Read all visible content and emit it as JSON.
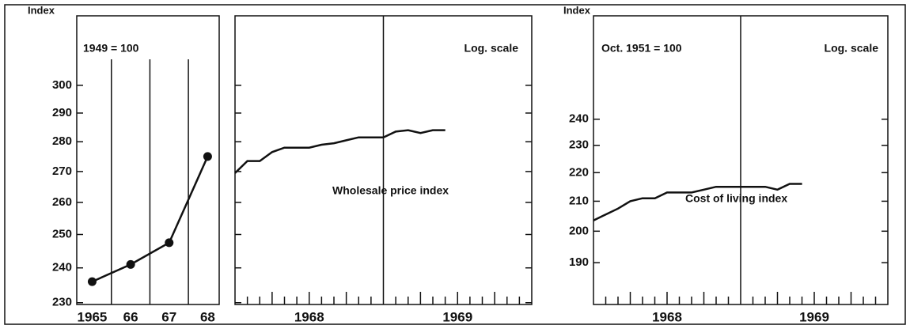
{
  "chart_data": [
    {
      "type": "line",
      "ylabel": "Index",
      "annotations": [
        "1949 = 100"
      ],
      "x": [
        1965,
        1966,
        1967,
        1968
      ],
      "values": [
        236,
        241,
        247.5,
        275
      ],
      "color": "#111111",
      "markers": true,
      "xlim": [
        1964.6,
        1968.3
      ],
      "xticks": [
        {
          "value": 1965,
          "label": "1965"
        },
        {
          "value": 1966,
          "label": "66"
        },
        {
          "value": 1967,
          "label": "67"
        },
        {
          "value": 1968,
          "label": "68"
        }
      ],
      "ylim": [
        229.5,
        326.6
      ],
      "yticks": [
        230,
        240,
        250,
        260,
        270,
        280,
        290,
        300
      ],
      "log_scale": true
    },
    {
      "type": "line",
      "annotations": [
        "Log. scale",
        "Wholesale price index"
      ],
      "x": [
        1968,
        1968.083,
        1968.167,
        1968.25,
        1968.333,
        1968.417,
        1968.5,
        1968.583,
        1968.667,
        1968.75,
        1968.833,
        1968.917,
        1969,
        1969.083,
        1969.167,
        1969.25,
        1969.333,
        1969.417
      ],
      "values": [
        269.5,
        273.5,
        273.5,
        276.5,
        278,
        278,
        278,
        279,
        279.5,
        280.5,
        281.5,
        281.5,
        281.5,
        283.5,
        284,
        283,
        284,
        284
      ],
      "color": "#111111",
      "markers": false,
      "xlim": [
        1968,
        1970
      ],
      "xticks": [
        {
          "value": 1968.5,
          "label": "1968"
        },
        {
          "value": 1969.5,
          "label": "1969"
        }
      ],
      "ylim": [
        229.5,
        326.6
      ],
      "yticks": [
        230,
        240,
        250,
        260,
        270,
        280,
        290,
        300
      ],
      "log_scale": true
    },
    {
      "type": "line",
      "ylabel": "Index",
      "annotations": [
        "Oct. 1951 = 100",
        "Log. scale",
        "Cost of living index"
      ],
      "x": [
        1968,
        1968.083,
        1968.167,
        1968.25,
        1968.333,
        1968.417,
        1968.5,
        1968.583,
        1968.667,
        1968.75,
        1968.833,
        1968.917,
        1969,
        1969.083,
        1969.167,
        1969.25,
        1969.333,
        1969.417
      ],
      "values": [
        203.5,
        205.5,
        207.5,
        210,
        211,
        211,
        213,
        213,
        213,
        214,
        215,
        215,
        215,
        215,
        215,
        214,
        216,
        216
      ],
      "color": "#111111",
      "markers": false,
      "xlim": [
        1968,
        1970
      ],
      "xticks": [
        {
          "value": 1968.5,
          "label": "1968"
        },
        {
          "value": 1969.5,
          "label": "1969"
        }
      ],
      "ylim": [
        177.5,
        284
      ],
      "yticks": [
        190,
        200,
        210,
        220,
        230,
        240
      ],
      "log_scale": true
    }
  ]
}
